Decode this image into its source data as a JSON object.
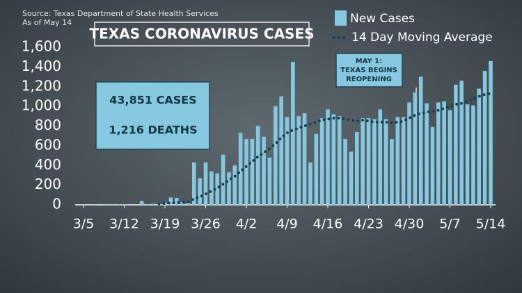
{
  "chart_data": {
    "type": "bar",
    "source": "Source: Texas Department of State Health Services",
    "date_note": "As of May 14",
    "title": "TEXAS CORONAVIRUS CASES",
    "stats": [
      "43,851 CASES",
      "1,216 DEATHS"
    ],
    "annotation": [
      "MAY 1:",
      "TEXAS BEGINS",
      "REOPENING"
    ],
    "categories": [
      "3/5",
      null,
      null,
      null,
      null,
      null,
      null,
      "3/12",
      null,
      null,
      null,
      null,
      null,
      null,
      "3/19",
      null,
      null,
      null,
      null,
      null,
      null,
      "3/26",
      null,
      null,
      null,
      null,
      null,
      null,
      "4/2",
      null,
      null,
      null,
      null,
      null,
      null,
      "4/9",
      null,
      null,
      null,
      null,
      null,
      null,
      "4/16",
      null,
      null,
      null,
      null,
      null,
      null,
      "4/23",
      null,
      null,
      null,
      null,
      null,
      null,
      "4/30",
      null,
      null,
      null,
      null,
      null,
      null,
      "5/7",
      null,
      null,
      null,
      null,
      null,
      null,
      "5/14"
    ],
    "series": [
      {
        "name": "New Cases",
        "color": "#86c8e0",
        "values": [
          2,
          0,
          2,
          0,
          8,
          8,
          5,
          5,
          0,
          0,
          38,
          5,
          10,
          15,
          25,
          75,
          70,
          30,
          20,
          430,
          270,
          430,
          340,
          320,
          510,
          330,
          400,
          730,
          670,
          670,
          800,
          690,
          480,
          1000,
          1100,
          890,
          1450,
          900,
          930,
          430,
          720,
          880,
          970,
          920,
          900,
          670,
          540,
          740,
          880,
          880,
          870,
          970,
          870,
          670,
          890,
          890,
          1040,
          1140,
          1300,
          1030,
          790,
          1040,
          1050,
          960,
          1220,
          1260,
          1020,
          1010,
          1180,
          1360,
          1460
        ]
      },
      {
        "name": "14 Day Moving Average",
        "color": "#163f4f",
        "type": "line",
        "values": [
          null,
          null,
          null,
          null,
          null,
          null,
          null,
          null,
          null,
          null,
          null,
          null,
          null,
          10,
          15,
          20,
          22,
          25,
          30,
          60,
          80,
          110,
          140,
          170,
          210,
          250,
          290,
          340,
          390,
          440,
          490,
          530,
          570,
          620,
          680,
          730,
          760,
          780,
          800,
          820,
          840,
          860,
          870,
          880,
          880,
          870,
          860,
          850,
          860,
          850,
          840,
          840,
          840,
          830,
          840,
          850,
          880,
          910,
          930,
          940,
          950,
          960,
          980,
          1000,
          1020,
          1030,
          1050,
          1080,
          1100,
          1120,
          1130
        ]
      }
    ],
    "ylim": [
      0,
      1600
    ],
    "yticks": [
      0,
      200,
      400,
      600,
      800,
      {
        "value": 1000,
        "label": "1,000"
      },
      {
        "value": 1200,
        "label": "1,200"
      },
      {
        "value": 1400,
        "label": "1,400"
      },
      {
        "value": 1600,
        "label": "1,600"
      }
    ]
  }
}
